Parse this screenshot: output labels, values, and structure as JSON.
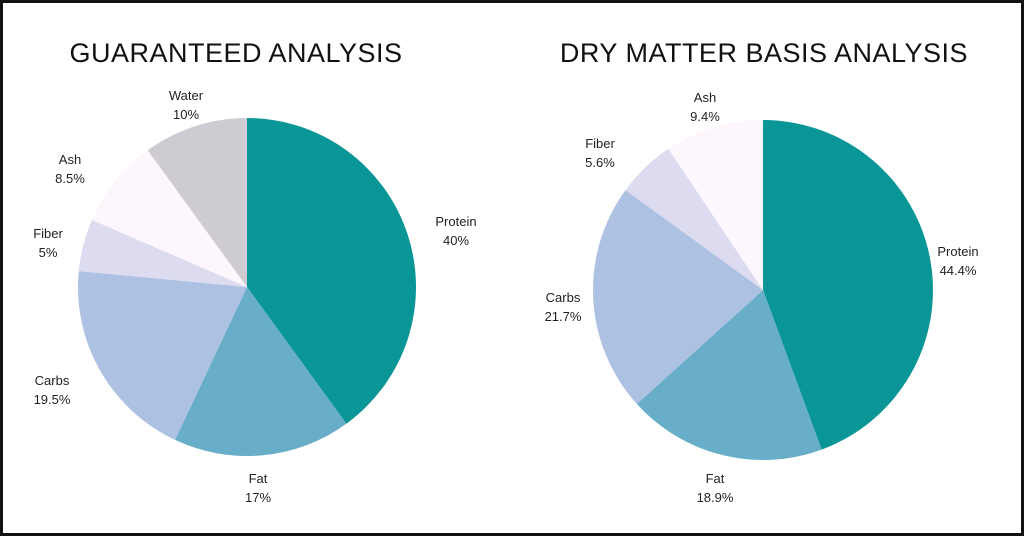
{
  "chart_data": [
    {
      "type": "pie",
      "title": "GUARANTEED ANALYSIS",
      "slices": [
        {
          "label": "Protein",
          "value": 40,
          "display": "40%",
          "color": "#0a9597"
        },
        {
          "label": "Fat",
          "value": 17,
          "display": "17%",
          "color": "#68aec9"
        },
        {
          "label": "Carbs",
          "value": 19.5,
          "display": "19.5%",
          "color": "#adc1e2"
        },
        {
          "label": "Fiber",
          "value": 5,
          "display": "5%",
          "color": "#dcdbf0"
        },
        {
          "label": "Ash",
          "value": 8.5,
          "display": "8.5%",
          "color": "#fdf6fd"
        },
        {
          "label": "Water",
          "value": 10,
          "display": "10%",
          "color": "#cfcbd2"
        }
      ]
    },
    {
      "type": "pie",
      "title": "DRY MATTER BASIS ANALYSIS",
      "slices": [
        {
          "label": "Protein",
          "value": 44.4,
          "display": "44.4%",
          "color": "#0a9597"
        },
        {
          "label": "Fat",
          "value": 18.9,
          "display": "18.9%",
          "color": "#68aec9"
        },
        {
          "label": "Carbs",
          "value": 21.7,
          "display": "21.7%",
          "color": "#adc1e2"
        },
        {
          "label": "Fiber",
          "value": 5.6,
          "display": "5.6%",
          "color": "#dcdbf0"
        },
        {
          "label": "Ash",
          "value": 9.4,
          "display": "9.4%",
          "color": "#fdf6fd"
        }
      ]
    }
  ]
}
